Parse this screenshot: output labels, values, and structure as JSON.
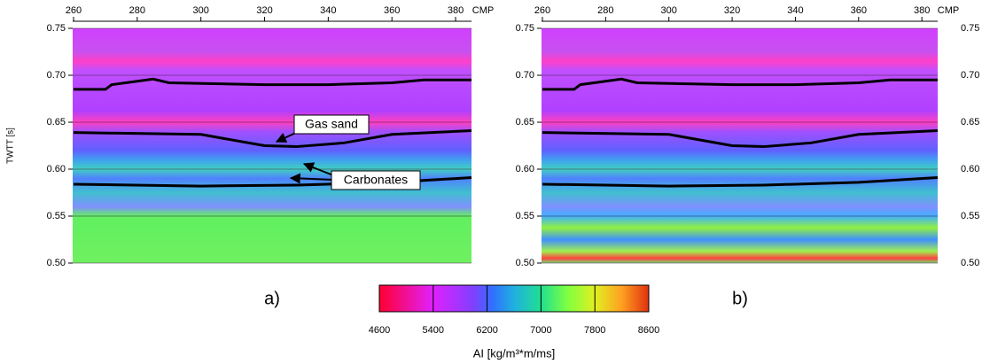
{
  "chart_data": [
    {
      "type": "seismic",
      "label": "a)",
      "xlabel": "CMP",
      "ylabel": "TWTT [s]",
      "xlim": [
        260,
        385
      ],
      "xticks": [
        260,
        280,
        300,
        320,
        340,
        360,
        380
      ],
      "ylim": [
        0.5,
        0.75
      ],
      "yticks": [
        {
          "value": 0.5,
          "label": "0.50"
        },
        {
          "value": 0.55,
          "label": "0.55"
        },
        {
          "value": 0.6,
          "label": "0.60"
        },
        {
          "value": 0.65,
          "label": "0.65"
        },
        {
          "value": 0.7,
          "label": "0.70"
        },
        {
          "value": 0.75,
          "label": "0.75"
        }
      ],
      "grid": true,
      "series": [
        {
          "color": "#000000",
          "x": [
            260,
            300,
            330,
            360,
            385
          ],
          "values": [
            0.584,
            0.582,
            0.583,
            0.586,
            0.591
          ]
        },
        {
          "color": "#000000",
          "x": [
            260,
            300,
            320,
            330,
            345,
            360,
            385
          ],
          "values": [
            0.639,
            0.637,
            0.625,
            0.624,
            0.628,
            0.637,
            0.641
          ]
        },
        {
          "color": "#000000",
          "x": [
            260,
            270,
            272,
            285,
            290,
            320,
            340,
            360,
            370,
            385
          ],
          "values": [
            0.685,
            0.685,
            0.69,
            0.696,
            0.692,
            0.69,
            0.69,
            0.692,
            0.695,
            0.695
          ]
        }
      ],
      "annotations": [
        "Gas sand",
        "Carbonates"
      ]
    },
    {
      "type": "seismic",
      "label": "b)",
      "xlabel": "CMP",
      "xlim": [
        260,
        385
      ],
      "xticks": [
        260,
        280,
        300,
        320,
        340,
        360,
        380
      ],
      "ylim": [
        0.5,
        0.75
      ],
      "yticks": [
        {
          "value": 0.5,
          "label": "0.50"
        },
        {
          "value": 0.55,
          "label": "0.55"
        },
        {
          "value": 0.6,
          "label": "0.60"
        },
        {
          "value": 0.65,
          "label": "0.65"
        },
        {
          "value": 0.7,
          "label": "0.70"
        },
        {
          "value": 0.75,
          "label": "0.75"
        }
      ],
      "grid": true,
      "series": [
        {
          "color": "#000000",
          "x": [
            260,
            300,
            330,
            360,
            385
          ],
          "values": [
            0.584,
            0.582,
            0.583,
            0.586,
            0.591
          ]
        },
        {
          "color": "#000000",
          "x": [
            260,
            300,
            320,
            330,
            345,
            360,
            385
          ],
          "values": [
            0.639,
            0.637,
            0.625,
            0.624,
            0.628,
            0.637,
            0.641
          ]
        },
        {
          "color": "#000000",
          "x": [
            260,
            270,
            272,
            285,
            290,
            320,
            340,
            360,
            370,
            385
          ],
          "values": [
            0.685,
            0.685,
            0.69,
            0.696,
            0.692,
            0.69,
            0.69,
            0.692,
            0.695,
            0.695
          ]
        }
      ]
    },
    {
      "type": "colorbar",
      "xlabel": "AI [kg/m³*m/ms]",
      "xlim": [
        4600,
        8600
      ],
      "xticks": [
        4600,
        5400,
        6200,
        7000,
        7800,
        8600
      ]
    }
  ]
}
